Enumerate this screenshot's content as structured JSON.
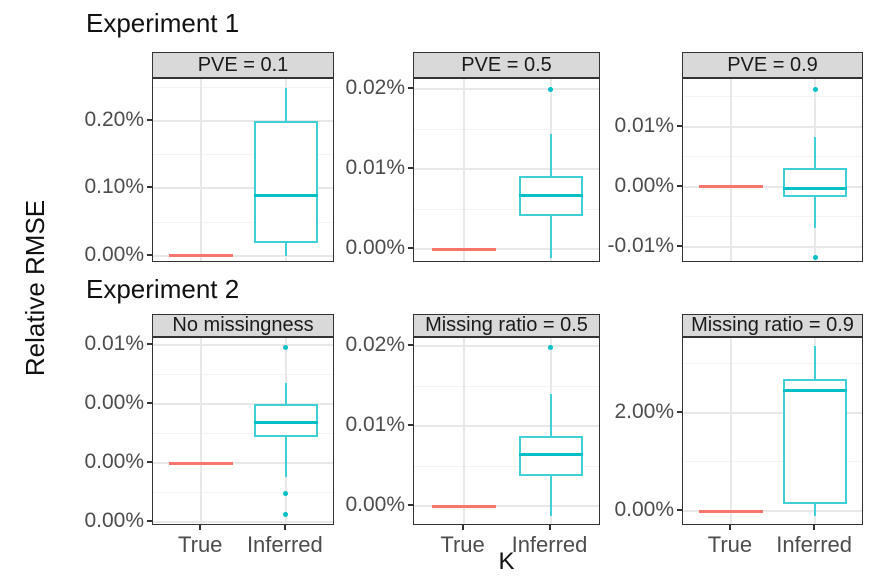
{
  "titles": {
    "experiment1": "Experiment 1",
    "experiment2": "Experiment 2"
  },
  "axes": {
    "y_label": "Relative RMSE",
    "x_label": "K"
  },
  "colors": {
    "true_line": "#F8766D",
    "inferred_line": "#3FD0D5",
    "inferred_median": "#00BEC4",
    "outlier_dot": "#00BFC4",
    "strip_bg": "#D9D9D9",
    "panel_border": "#333333",
    "grid_major": "#E8E8E8",
    "grid_minor": "#F4F4F4",
    "tick_text": "#4d4d4d"
  },
  "chart_data": {
    "type": "boxplot",
    "title": "",
    "xlabel": "K",
    "ylabel": "Relative RMSE",
    "unit": "percent",
    "x_categories": [
      "True",
      "Inferred"
    ],
    "row_titles": [
      "Experiment 1",
      "Experiment 2"
    ],
    "legend": "none",
    "panels": [
      {
        "row": 0,
        "col": 0,
        "strip": "PVE = 0.1",
        "ylim": [
          -0.0104,
          0.2622
        ],
        "yticks": [
          {
            "value": 0.0,
            "label": "0.00%"
          },
          {
            "value": 0.1,
            "label": "0.10%"
          },
          {
            "value": 0.2,
            "label": "0.20%"
          }
        ],
        "yticks_minor": [
          0.05,
          0.15,
          0.25
        ],
        "series": {
          "true": {
            "label": "True",
            "value": 0.0
          },
          "inferred": {
            "label": "Inferred",
            "whisker_low": 0.0,
            "q1": 0.019,
            "median": 0.09,
            "q3": 0.2,
            "whisker_high": 0.249,
            "outliers": []
          }
        }
      },
      {
        "row": 0,
        "col": 1,
        "strip": "PVE = 0.5",
        "ylim": [
          -0.00175,
          0.02125
        ],
        "yticks": [
          {
            "value": 0.0,
            "label": "0.00%"
          },
          {
            "value": 0.01,
            "label": "0.01%"
          },
          {
            "value": 0.02,
            "label": "0.02%"
          }
        ],
        "yticks_minor": [
          0.005,
          0.015
        ],
        "series": {
          "true": {
            "label": "True",
            "value": 0.0
          },
          "inferred": {
            "label": "Inferred",
            "whisker_low": -0.0011,
            "q1": 0.0041,
            "median": 0.0067,
            "q3": 0.0091,
            "whisker_high": 0.0144,
            "outliers": [
              0.02
            ]
          }
        }
      },
      {
        "row": 0,
        "col": 2,
        "strip": "PVE = 0.9",
        "ylim": [
          -0.01267,
          0.018
        ],
        "yticks": [
          {
            "value": -0.01,
            "label": "-0.01%"
          },
          {
            "value": 0.0,
            "label": "0.00%"
          },
          {
            "value": 0.01,
            "label": "0.01%"
          }
        ],
        "yticks_minor": [
          -0.005,
          0.005,
          0.015
        ],
        "series": {
          "true": {
            "label": "True",
            "value": 0.0
          },
          "inferred": {
            "label": "Inferred",
            "whisker_low": -0.0068,
            "q1": -0.0017,
            "median": -0.0002,
            "q3": 0.0032,
            "whisker_high": 0.0083,
            "outliers": [
              0.0163,
              -0.0118
            ]
          }
        }
      },
      {
        "row": 1,
        "col": 0,
        "strip": "No missingness",
        "ylim": [
          -0.00267,
          0.0053
        ],
        "yticks": [
          {
            "value": -0.0025,
            "label": "0.00%"
          },
          {
            "value": 0.0,
            "label": "0.00%"
          },
          {
            "value": 0.0025,
            "label": "0.00%"
          },
          {
            "value": 0.005,
            "label": "0.01%"
          }
        ],
        "yticks_minor": [
          -0.00125,
          0.00125,
          0.00375
        ],
        "series": {
          "true": {
            "label": "True",
            "value": 0.0
          },
          "inferred": {
            "label": "Inferred",
            "whisker_low": -0.0006,
            "q1": 0.0011,
            "median": 0.0017,
            "q3": 0.0025,
            "whisker_high": 0.0034,
            "outliers": [
              0.0049,
              -0.0013,
              -0.0022
            ]
          }
        }
      },
      {
        "row": 1,
        "col": 1,
        "strip": "Missing ratio = 0.5",
        "ylim": [
          -0.0025,
          0.021
        ],
        "yticks": [
          {
            "value": 0.0,
            "label": "0.00%"
          },
          {
            "value": 0.01,
            "label": "0.01%"
          },
          {
            "value": 0.02,
            "label": "0.02%"
          }
        ],
        "yticks_minor": [
          0.005,
          0.015
        ],
        "series": {
          "true": {
            "label": "True",
            "value": 0.0
          },
          "inferred": {
            "label": "Inferred",
            "whisker_low": -0.0013,
            "q1": 0.0038,
            "median": 0.0065,
            "q3": 0.0088,
            "whisker_high": 0.014,
            "outliers": [
              0.0198
            ]
          }
        }
      },
      {
        "row": 1,
        "col": 2,
        "strip": "Missing ratio = 0.9",
        "ylim": [
          -0.306,
          3.53
        ],
        "yticks": [
          {
            "value": 0.0,
            "label": "0.00%"
          },
          {
            "value": 2.0,
            "label": "2.00%"
          }
        ],
        "yticks_minor": [
          1.0,
          3.0
        ],
        "series": {
          "true": {
            "label": "True",
            "value": 0.0
          },
          "inferred": {
            "label": "Inferred",
            "whisker_low": -0.1,
            "q1": 0.14,
            "median": 2.45,
            "q3": 2.69,
            "whisker_high": 3.37,
            "outliers": []
          }
        }
      }
    ]
  }
}
